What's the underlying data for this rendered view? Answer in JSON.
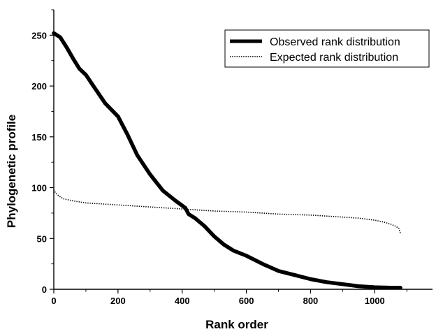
{
  "chart_data": {
    "type": "line",
    "title": "",
    "xlabel": "Rank order",
    "ylabel": "Phylogenetic  profile",
    "xlim": [
      0,
      1180
    ],
    "ylim": [
      0,
      275
    ],
    "xticks": [
      0,
      200,
      400,
      600,
      800,
      1000
    ],
    "yticks": [
      0,
      50,
      100,
      150,
      200,
      250
    ],
    "x_tick_labels": [
      "0",
      "200",
      "400",
      "600",
      "800",
      "1000"
    ],
    "y_tick_labels": [
      "0",
      "50",
      "100",
      "150",
      "200",
      "250"
    ],
    "grid": false,
    "legend_position": "top-right",
    "series": [
      {
        "name": "Observed rank distribution",
        "style": "solid-thick",
        "color": "#000000",
        "x": [
          0,
          20,
          40,
          60,
          80,
          100,
          130,
          160,
          200,
          230,
          260,
          300,
          340,
          380,
          410,
          420,
          440,
          470,
          500,
          530,
          560,
          600,
          650,
          700,
          750,
          800,
          850,
          900,
          950,
          1000,
          1050,
          1080
        ],
        "y": [
          252,
          248,
          238,
          227,
          217,
          211,
          197,
          183,
          170,
          152,
          132,
          113,
          97,
          87,
          80,
          74,
          70,
          62,
          52,
          44,
          38,
          33,
          25,
          18,
          14,
          10,
          7,
          5,
          3,
          2,
          1.5,
          1.5
        ]
      },
      {
        "name": "Expected rank distribution",
        "style": "dotted",
        "color": "#000000",
        "x": [
          0,
          5,
          15,
          30,
          60,
          100,
          150,
          200,
          300,
          400,
          500,
          600,
          700,
          800,
          900,
          950,
          1000,
          1030,
          1050,
          1065,
          1075,
          1080
        ],
        "y": [
          98,
          95,
          92,
          89,
          87,
          85,
          84,
          83,
          81,
          79,
          77,
          76,
          74,
          73,
          71,
          70,
          68,
          66,
          64,
          62,
          60,
          55
        ]
      }
    ]
  }
}
